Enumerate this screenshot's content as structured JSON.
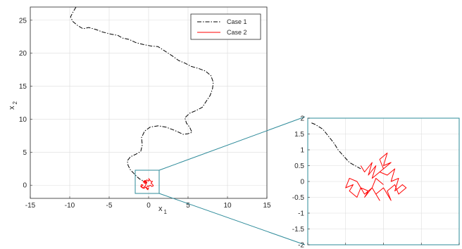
{
  "chart_data": [
    {
      "type": "line",
      "xlabel": "x",
      "xlabel_sub": "1",
      "ylabel": "x",
      "ylabel_sub": "2",
      "xlim": [
        -15,
        15
      ],
      "ylim": [
        -2,
        27
      ],
      "xticks": [
        -15,
        -10,
        -5,
        0,
        5,
        10,
        15
      ],
      "yticks": [
        0,
        5,
        10,
        15,
        20,
        25
      ],
      "grid": true,
      "legend_position": "top-right",
      "series": [
        {
          "name": "Case 1",
          "color": "#000000",
          "linestyle": "dash-dot",
          "x": [
            -9.2,
            -9.6,
            -9.9,
            -9.6,
            -9.0,
            -8.3,
            -7.6,
            -6.7,
            -5.8,
            -4.8,
            -3.9,
            -3.3,
            -2.5,
            -1.6,
            -0.6,
            0.3,
            1.2,
            2.1,
            3.0,
            3.8,
            4.6,
            5.4,
            6.3,
            7.2,
            7.9,
            8.2,
            8.1,
            7.8,
            7.3,
            6.8,
            6.0,
            5.2,
            4.6,
            4.8,
            5.2,
            5.5,
            5.0,
            4.4,
            3.3,
            2.2,
            1.2,
            0.2,
            -0.5,
            -0.9,
            -0.8,
            -1.0,
            -1.6,
            -2.3,
            -2.7,
            -2.6,
            -2.3,
            -1.8,
            -1.5,
            -1.1,
            -0.6,
            -0.2
          ],
          "y": [
            27.0,
            26.2,
            25.5,
            24.8,
            24.2,
            23.7,
            23.9,
            23.6,
            23.2,
            22.9,
            22.7,
            22.3,
            22.1,
            21.6,
            21.3,
            21.1,
            21.0,
            20.3,
            19.6,
            18.9,
            18.5,
            18.0,
            17.7,
            17.3,
            16.6,
            15.6,
            14.6,
            13.6,
            12.7,
            11.8,
            11.3,
            10.9,
            10.2,
            9.4,
            8.8,
            8.0,
            7.8,
            7.7,
            8.3,
            8.8,
            9.0,
            8.8,
            8.2,
            7.2,
            6.1,
            5.1,
            4.7,
            4.3,
            3.7,
            3.0,
            2.3,
            1.7,
            1.3,
            0.9,
            0.6,
            0.3
          ]
        },
        {
          "name": "Case 2",
          "color": "#ff0000",
          "linestyle": "solid",
          "x": [
            -0.2,
            -0.4,
            -0.5,
            -0.3,
            -0.6,
            -0.4,
            -0.2,
            -0.5,
            -0.7,
            -0.5,
            -0.2,
            0.0,
            0.1,
            0.0,
            0.2,
            0.4,
            0.5,
            0.3,
            0.5,
            0.6,
            0.4,
            0.2,
            0.0,
            -0.1,
            -0.3,
            -0.2,
            0.0,
            -0.1,
            -0.2,
            -0.4,
            -0.6,
            -0.8,
            -0.9,
            -0.7,
            -0.9,
            -1.0,
            -0.8,
            -0.6,
            -0.4,
            -0.3
          ],
          "y": [
            0.3,
            0.4,
            0.5,
            0.6,
            0.4,
            0.2,
            0.5,
            0.7,
            0.5,
            0.6,
            0.8,
            0.6,
            0.9,
            1.0,
            0.7,
            0.5,
            0.6,
            0.3,
            0.1,
            -0.1,
            -0.2,
            0.0,
            -0.2,
            -0.1,
            -0.4,
            -0.6,
            -0.4,
            -0.7,
            -0.5,
            -0.3,
            -0.5,
            -0.4,
            -0.2,
            0.0,
            0.1,
            -0.2,
            -0.4,
            -0.3,
            -0.1,
            0.2
          ]
        }
      ]
    },
    {
      "type": "line",
      "xlim": [
        -2,
        2
      ],
      "ylim": [
        -2,
        2
      ],
      "xticks": [
        -2,
        -1,
        0,
        1,
        2
      ],
      "yticks": [
        -2,
        -1.5,
        -1,
        -0.5,
        0,
        0.5,
        1,
        1.5,
        2
      ],
      "grid": true,
      "series": [
        {
          "name": "Case 1",
          "color": "#000000",
          "linestyle": "dash-dot",
          "x": [
            -1.9,
            -1.8,
            -1.6,
            -1.5,
            -1.3,
            -1.2,
            -1.05,
            -0.9,
            -0.75,
            -0.6
          ],
          "y": [
            1.85,
            1.8,
            1.65,
            1.5,
            1.2,
            1.0,
            0.8,
            0.6,
            0.5,
            0.4
          ]
        },
        {
          "name": "Case 2",
          "color": "#ff0000",
          "linestyle": "solid",
          "x": [
            -0.6,
            -0.5,
            -0.3,
            -0.4,
            -0.2,
            -0.3,
            0.0,
            -0.1,
            0.1,
            0.0,
            0.2,
            -0.1,
            0.1,
            0.3,
            0.2,
            0.4,
            0.3,
            0.5,
            0.6,
            0.4,
            0.3,
            0.1,
            0.2,
            0.0,
            -0.2,
            -0.1,
            -0.3,
            -0.5,
            -0.4,
            -0.6,
            -0.7,
            -0.9,
            -0.8,
            -1.0,
            -0.9,
            -0.7,
            -0.5,
            -0.3,
            -0.2,
            0.0
          ],
          "y": [
            0.5,
            0.3,
            0.6,
            0.2,
            0.5,
            0.1,
            0.4,
            0.7,
            0.9,
            0.5,
            0.6,
            0.3,
            0.2,
            0.4,
            0.0,
            0.1,
            -0.3,
            -0.1,
            -0.2,
            -0.4,
            -0.1,
            -0.3,
            -0.6,
            -0.2,
            -0.4,
            -0.6,
            -0.2,
            -0.5,
            -0.3,
            -0.2,
            -0.5,
            -0.3,
            -0.1,
            -0.2,
            0.1,
            0.0,
            -0.4,
            -0.2,
            0.1,
            -0.1
          ]
        }
      ]
    }
  ]
}
